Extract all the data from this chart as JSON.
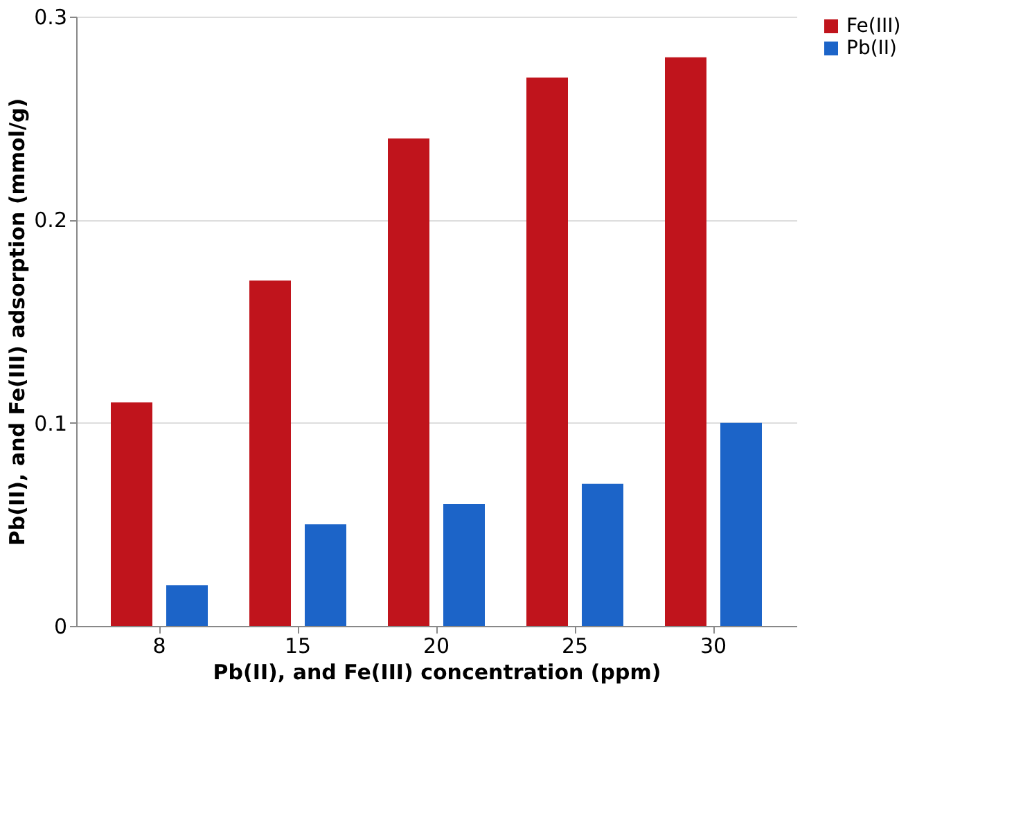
{
  "chart_data": {
    "type": "bar",
    "xlabel": "Pb(II), and Fe(III) concentration (ppm)",
    "ylabel": "Pb(II), and Fe(III) adsorption (mmol/g)",
    "categories": [
      "8",
      "15",
      "20",
      "25",
      "30"
    ],
    "series": [
      {
        "name": "Fe(III)",
        "color": "#c0141c",
        "values": [
          0.11,
          0.17,
          0.24,
          0.27,
          0.28
        ]
      },
      {
        "name": "Pb(II)",
        "color": "#1c64c8",
        "values": [
          0.02,
          0.05,
          0.06,
          0.07,
          0.1
        ]
      }
    ],
    "ylim": [
      0,
      0.3
    ],
    "yticks": [
      0,
      0.1,
      0.2,
      0.3
    ],
    "grid": "y",
    "legend": "top right"
  }
}
